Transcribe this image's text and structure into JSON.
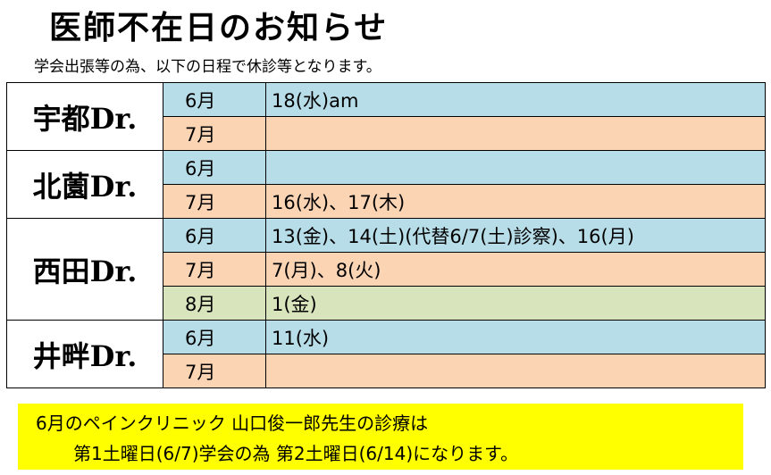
{
  "header": {
    "title": "医師不在日のお知らせ",
    "subtitle": "学会出張等の為、以下の日程で休診等となります。"
  },
  "doctors": [
    {
      "name": "宇都Dr.",
      "rows": [
        {
          "month": "6月",
          "dates": "18(水)am"
        },
        {
          "month": "7月",
          "dates": ""
        }
      ]
    },
    {
      "name": "北薗Dr.",
      "rows": [
        {
          "month": "6月",
          "dates": ""
        },
        {
          "month": "7月",
          "dates": "16(水)、17(木)"
        }
      ]
    },
    {
      "name": "西田Dr.",
      "rows": [
        {
          "month": "6月",
          "dates": "13(金)、14(土)(代替6/7(土)診察)、16(月)"
        },
        {
          "month": "7月",
          "dates": "7(月)、8(火)"
        },
        {
          "month": "8月",
          "dates": "1(金)"
        }
      ]
    },
    {
      "name": "井畔Dr.",
      "rows": [
        {
          "month": "6月",
          "dates": "11(水)"
        },
        {
          "month": "7月",
          "dates": ""
        }
      ]
    }
  ],
  "notice": {
    "line1": "6月のペインクリニック 山口俊一郎先生の診療は",
    "line2": "第1土曜日(6/7)学会の為 第2土曜日(6/14)になります。"
  }
}
